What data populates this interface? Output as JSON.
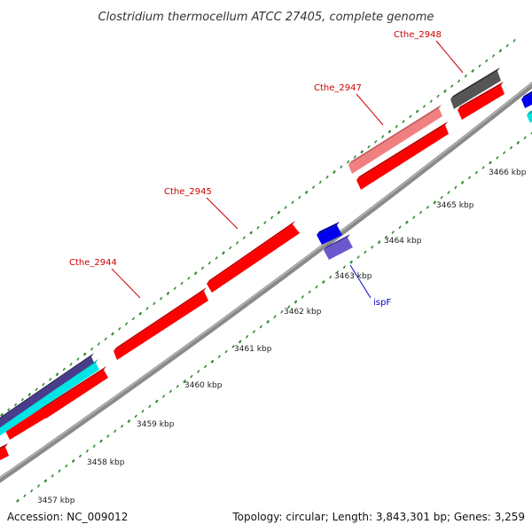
{
  "title": "Clostridium thermocellum ATCC 27405, complete genome",
  "footer": {
    "accession": "Accession: NC_009012",
    "summary": "Topology: circular; Length: 3,843,301 bp; Genes: 3,259"
  },
  "colors": {
    "gene_red": "#ff0000",
    "gene_red_dark": "#b80000",
    "gene_pink": "#f08080",
    "gene_pink_dark": "#c05a5a",
    "gene_gray": "#555555",
    "gene_gray_dark": "#2e2e2e",
    "gene_blue": "#0000ee",
    "gene_blue_dark": "#0000a0",
    "gene_lavender": "#6a5acd",
    "gene_lavender_dark": "#4a3c9e",
    "gene_cyan": "#00e5e5",
    "gene_cyan_dark": "#00a8a8",
    "gene_navy": "#483d8b",
    "gene_navy_dark": "#2e2660",
    "backbone": "#8a8a8a",
    "tick": "#2e8b2e",
    "label_red": "#cc0000",
    "label_blue": "#0000cc"
  },
  "gene_labels": [
    {
      "name": "Cthe_2948",
      "color": "label_red"
    },
    {
      "name": "Cthe_2947",
      "color": "label_red"
    },
    {
      "name": "Cthe_2945",
      "color": "label_red"
    },
    {
      "name": "Cthe_2944",
      "color": "label_red"
    },
    {
      "name": "ispF",
      "color": "label_blue"
    }
  ],
  "kbp_ticks": [
    "3457 kbp",
    "3458 kbp",
    "3459 kbp",
    "3460 kbp",
    "3461 kbp",
    "3462 kbp",
    "3463 kbp",
    "3464 kbp",
    "3465 kbp",
    "3466 kbp"
  ]
}
